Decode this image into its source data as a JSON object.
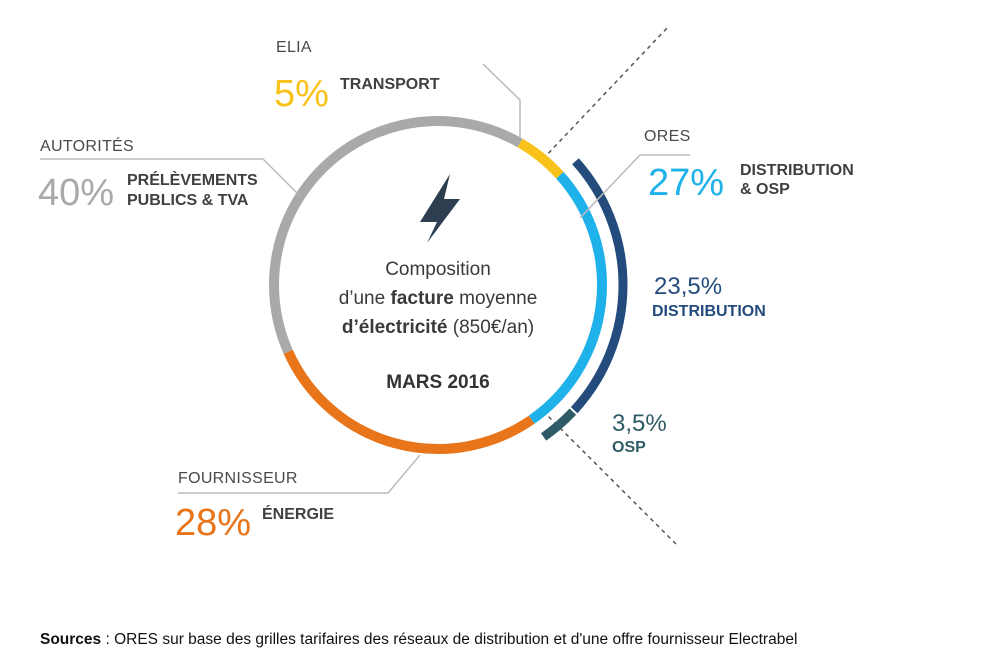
{
  "chart_data": {
    "type": "pie",
    "variant": "ring",
    "center": {
      "line1": "Composition",
      "line2_pre": "d’une ",
      "line2_bold": "facture",
      "line2_post": " moyenne",
      "line3_bold": "d’électricité",
      "line3_post": " (850€/an)",
      "date": "MARS 2016"
    },
    "slices": [
      {
        "category": "ELIA",
        "value": 5,
        "value_label": "5%",
        "label": "TRANSPORT",
        "color": "#f9c21a"
      },
      {
        "category": "ORES",
        "value": 27,
        "value_label": "27%",
        "label_lines": [
          "DISTRIBUTION",
          "& OSP"
        ],
        "color": "#1fb1ea"
      },
      {
        "category": "FOURNISSEUR",
        "value": 28,
        "value_label": "28%",
        "label": "ÉNERGIE",
        "color": "#e8751a"
      },
      {
        "category": "AUTORITÉS",
        "value": 40,
        "value_label": "40%",
        "label_lines": [
          "PRÉLÈVEMENTS",
          "PUBLICS & TVA"
        ],
        "color": "#a9a9a9"
      }
    ],
    "sub_slices": [
      {
        "value": 23.5,
        "value_label": "23,5%",
        "label": "DISTRIBUTION",
        "color": "#234b7c"
      },
      {
        "value": 3.5,
        "value_label": "3,5%",
        "label": "OSP",
        "color": "#2f5b66"
      }
    ]
  },
  "sources": {
    "label": "Sources",
    "text": " : ORES sur base des grilles tarifaires des réseaux de distribution et d'une offre fournisseur Electrabel"
  }
}
